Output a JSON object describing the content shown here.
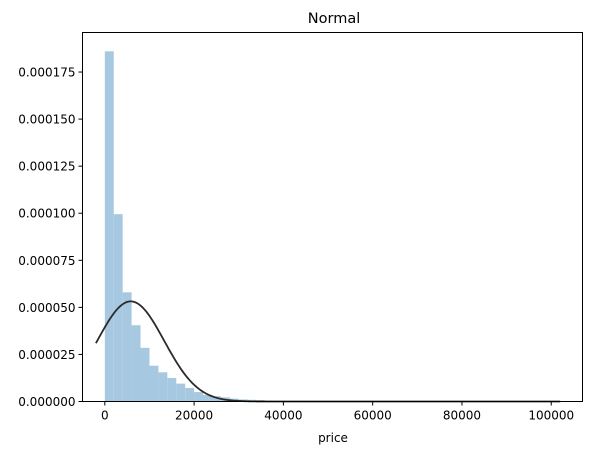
{
  "chart_data": {
    "type": "bar",
    "title": "Normal",
    "xlabel": "price",
    "ylabel": "",
    "xlim": [
      -5000,
      107000
    ],
    "ylim": [
      0,
      0.000196
    ],
    "grid": false,
    "x_ticks": [
      {
        "value": 0,
        "label": "0"
      },
      {
        "value": 20000,
        "label": "20000"
      },
      {
        "value": 40000,
        "label": "40000"
      },
      {
        "value": 60000,
        "label": "60000"
      },
      {
        "value": 80000,
        "label": "80000"
      },
      {
        "value": 100000,
        "label": "100000"
      }
    ],
    "y_ticks": [
      {
        "value": 0,
        "label": "0.000000"
      },
      {
        "value": 2.5e-05,
        "label": "0.000025"
      },
      {
        "value": 5e-05,
        "label": "0.000050"
      },
      {
        "value": 7.5e-05,
        "label": "0.000075"
      },
      {
        "value": 0.0001,
        "label": "0.000100"
      },
      {
        "value": 0.000125,
        "label": "0.000125"
      },
      {
        "value": 0.00015,
        "label": "0.000150"
      },
      {
        "value": 0.000175,
        "label": "0.000175"
      }
    ],
    "histogram": {
      "bin_start": 0,
      "bin_width": 2000,
      "color": "#a6c8e0",
      "values": [
        0.000186,
        9.95e-05,
        5.8e-05,
        4.05e-05,
        2.85e-05,
        1.9e-05,
        1.55e-05,
        1.25e-05,
        9.5e-06,
        7.2e-06,
        5e-06,
        3.5e-06,
        2.8e-06,
        2.2e-06,
        1.5e-06,
        1.1e-06,
        9e-07,
        7e-07,
        5e-07,
        4e-07,
        3e-07,
        3e-07,
        2e-07,
        2e-07,
        1e-07,
        1e-07,
        1e-07,
        1e-07,
        1e-07,
        1e-07,
        1e-07,
        1e-07,
        1e-07,
        1e-07,
        1e-07,
        1e-07,
        1e-07,
        1e-07,
        1e-07,
        1e-07,
        1e-07,
        1e-07,
        1e-07,
        1e-07,
        1e-07,
        1e-07,
        1e-07,
        1e-07,
        1e-07,
        1e-07,
        1e-07
      ]
    },
    "fit_curve": {
      "distribution": "normal",
      "mean": 5800,
      "std": 7500,
      "x_range": [
        -2000,
        102000
      ],
      "color": "#2b2b2b"
    }
  }
}
